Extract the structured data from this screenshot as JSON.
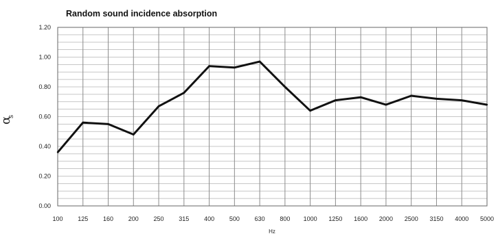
{
  "chart_data": {
    "type": "line",
    "title": "Random sound incidence absorption",
    "xlabel": "Hz",
    "ylabel": "α",
    "ylabel_subscript": "s",
    "categories": [
      "100",
      "125",
      "160",
      "200",
      "250",
      "315",
      "400",
      "500",
      "630",
      "800",
      "1000",
      "1250",
      "1600",
      "2000",
      "2500",
      "3150",
      "4000",
      "5000"
    ],
    "series": [
      {
        "values": [
          0.36,
          0.56,
          0.55,
          0.48,
          0.67,
          0.76,
          0.94,
          0.93,
          0.97,
          0.8,
          0.64,
          0.71,
          0.73,
          0.68,
          0.74,
          0.72,
          0.71,
          0.68
        ]
      }
    ],
    "ylim": [
      0,
      1.2
    ],
    "yticks": [
      "0.00",
      "0.20",
      "0.40",
      "0.60",
      "0.80",
      "1.00",
      "1.20"
    ],
    "grid": true,
    "line_color": "#111111",
    "grid_color": "#b4b4b4"
  }
}
